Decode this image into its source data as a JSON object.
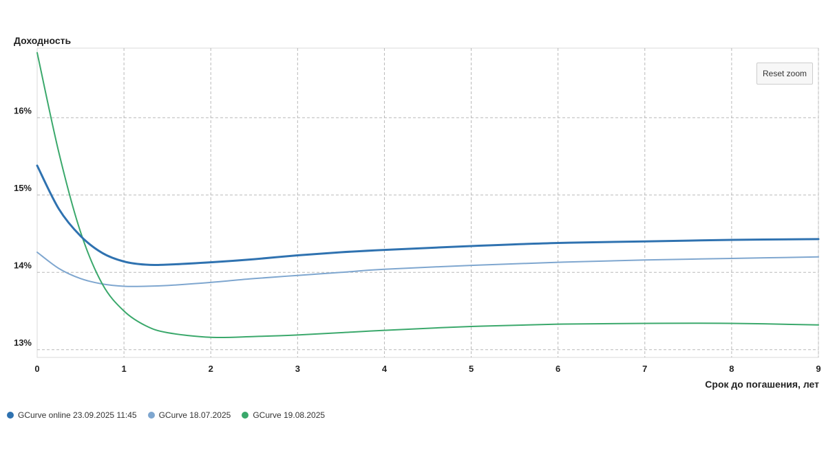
{
  "reset_zoom_label": "Reset zoom",
  "chart_data": {
    "type": "line",
    "ylabel": "Доходность",
    "xlabel": "Срок до погашения, лет",
    "xlim": [
      0,
      9
    ],
    "ylim": [
      12.9,
      16.9
    ],
    "x_ticks": [
      0,
      1,
      2,
      3,
      4,
      5,
      6,
      7,
      8,
      9
    ],
    "x_tick_labels": [
      "0",
      "1",
      "2",
      "3",
      "4",
      "5",
      "6",
      "7",
      "8",
      "9"
    ],
    "y_ticks": [
      13,
      14,
      15,
      16
    ],
    "y_tick_labels": [
      "13%",
      "14%",
      "15%",
      "16%"
    ],
    "grid": true,
    "legend_position": "bottom-left",
    "series": [
      {
        "name": "GCurve online 23.09.2025 11:45",
        "color": "#2f72b0",
        "width": 3,
        "x": [
          0,
          0.25,
          0.5,
          0.75,
          1,
          1.25,
          1.5,
          2,
          2.5,
          3,
          3.5,
          4,
          5,
          6,
          7,
          8,
          9
        ],
        "y": [
          15.38,
          14.82,
          14.47,
          14.25,
          14.14,
          14.1,
          14.1,
          14.13,
          14.17,
          14.22,
          14.26,
          14.29,
          14.34,
          14.38,
          14.4,
          14.42,
          14.43
        ]
      },
      {
        "name": "GCurve 18.07.2025",
        "color": "#7ea6cf",
        "width": 2,
        "x": [
          0,
          0.25,
          0.5,
          0.75,
          1,
          1.25,
          1.5,
          2,
          2.5,
          3,
          3.5,
          4,
          5,
          6,
          7,
          8,
          9
        ],
        "y": [
          14.26,
          14.05,
          13.92,
          13.85,
          13.82,
          13.82,
          13.83,
          13.87,
          13.92,
          13.96,
          14.0,
          14.04,
          14.09,
          14.13,
          14.16,
          14.18,
          14.2
        ]
      },
      {
        "name": "GCurve 19.08.2025",
        "color": "#3aa86b",
        "width": 2,
        "x": [
          0,
          0.25,
          0.5,
          0.75,
          1,
          1.25,
          1.5,
          2,
          2.5,
          3,
          3.5,
          4,
          5,
          6,
          7,
          8,
          9
        ],
        "y": [
          16.84,
          15.55,
          14.52,
          13.85,
          13.5,
          13.31,
          13.22,
          13.16,
          13.17,
          13.19,
          13.22,
          13.25,
          13.3,
          13.33,
          13.34,
          13.34,
          13.32
        ]
      }
    ]
  }
}
